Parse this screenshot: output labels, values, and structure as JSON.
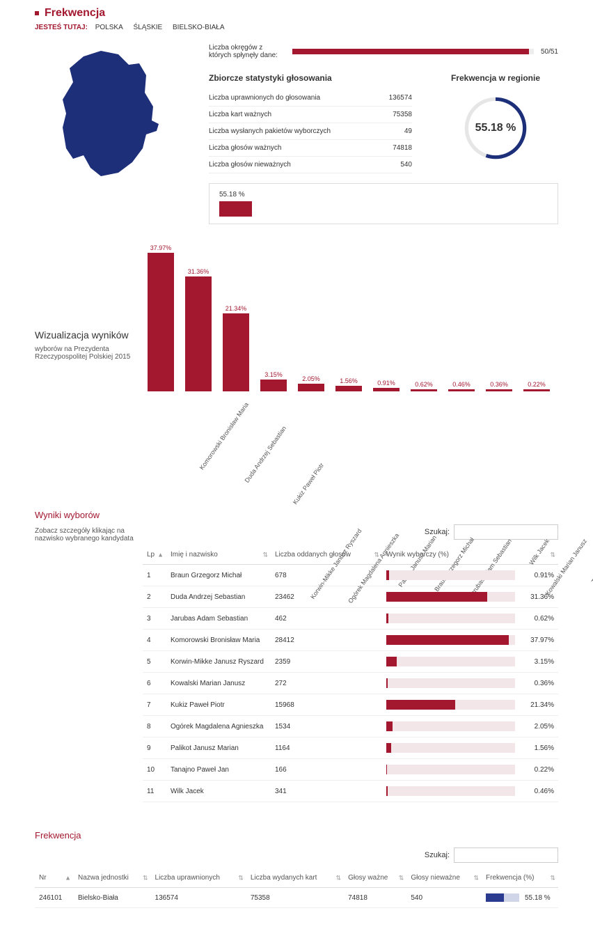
{
  "colors": {
    "accent": "#a3172f",
    "map_fill": "#1e2f7a",
    "donut_bg": "#e6e6e6",
    "pct_track": "#f3e6e9",
    "freq_track": "#d0d6e8",
    "freq_fill": "#2b3b8f",
    "text": "#333333"
  },
  "page_title": "Frekwencja",
  "breadcrumbs": {
    "you_are_here": "JESTEŚ TUTAJ:",
    "items": [
      "POLSKA",
      "ŚLĄSKIE",
      "BIELSKO-BIAŁA"
    ]
  },
  "progress": {
    "label": "Liczba okręgów z których spłynęły dane:",
    "current": 50,
    "total": 51,
    "text": "50/51",
    "pct": 98.04
  },
  "voting_stats": {
    "title": "Zbiorcze statystyki głosowania",
    "rows": [
      {
        "label": "Liczba uprawnionych do głosowania",
        "value": "136574"
      },
      {
        "label": "Liczba kart ważnych",
        "value": "75358"
      },
      {
        "label": "Liczba wysłanych pakietów wyborczych",
        "value": "49"
      },
      {
        "label": "Liczba głosów ważnych",
        "value": "74818"
      },
      {
        "label": "Liczba głosów nieważnych",
        "value": "540"
      }
    ]
  },
  "region_turnout": {
    "title": "Frekwencja w regionie",
    "pct": 55.18,
    "display": "55.18 %"
  },
  "mini_bar": {
    "label": "55.18 %",
    "width_pct": 10
  },
  "viz": {
    "heading": "Wizualizacja wyników",
    "sub": "wyborów na Prezydenta Rzeczypospolitej Polskiej 2015"
  },
  "bar_chart": {
    "type": "bar",
    "max_pct": 40,
    "bar_color": "#a3172f",
    "label_color": "#a3172f",
    "label_fontsize": 9,
    "axis_label_rotation_deg": -55,
    "bars": [
      {
        "name": "Komorowski Bronisław Maria",
        "pct": 37.97
      },
      {
        "name": "Duda Andrzej Sebastian",
        "pct": 31.36
      },
      {
        "name": "Kukiz Paweł Piotr",
        "pct": 21.34
      },
      {
        "name": "Korwin-Mikke Janusz Ryszard",
        "pct": 3.15
      },
      {
        "name": "Ogórek Magdalena Agnieszka",
        "pct": 2.05
      },
      {
        "name": "Palikot Janusz Marian",
        "pct": 1.56
      },
      {
        "name": "Braun Grzegorz Michał",
        "pct": 0.91
      },
      {
        "name": "Jarubas Adam Sebastian",
        "pct": 0.62
      },
      {
        "name": "Wilk Jacek",
        "pct": 0.46
      },
      {
        "name": "Kowalski Marian Janusz",
        "pct": 0.36
      },
      {
        "name": "Tanajno Paweł Jan",
        "pct": 0.22
      }
    ]
  },
  "results": {
    "title": "Wyniki wyborów",
    "hint": "Zobacz szczegóły klikając na nazwisko wybranego kandydata",
    "search_label": "Szukaj:",
    "columns": {
      "lp": "Lp",
      "name": "Imię i nazwisko",
      "votes": "Liczba oddanych głosów",
      "pct": "Wynik wyborczy (%)"
    },
    "rows": [
      {
        "lp": "1",
        "name": "Braun Grzegorz Michał",
        "votes": "678",
        "pct": 0.91
      },
      {
        "lp": "2",
        "name": "Duda Andrzej Sebastian",
        "votes": "23462",
        "pct": 31.36
      },
      {
        "lp": "3",
        "name": "Jarubas Adam Sebastian",
        "votes": "462",
        "pct": 0.62
      },
      {
        "lp": "4",
        "name": "Komorowski Bronisław Maria",
        "votes": "28412",
        "pct": 37.97
      },
      {
        "lp": "5",
        "name": "Korwin-Mikke Janusz Ryszard",
        "votes": "2359",
        "pct": 3.15
      },
      {
        "lp": "6",
        "name": "Kowalski Marian Janusz",
        "votes": "272",
        "pct": 0.36
      },
      {
        "lp": "7",
        "name": "Kukiz Paweł Piotr",
        "votes": "15968",
        "pct": 21.34
      },
      {
        "lp": "8",
        "name": "Ogórek Magdalena Agnieszka",
        "votes": "1534",
        "pct": 2.05
      },
      {
        "lp": "9",
        "name": "Palikot Janusz Marian",
        "votes": "1164",
        "pct": 1.56
      },
      {
        "lp": "10",
        "name": "Tanajno Paweł Jan",
        "votes": "166",
        "pct": 0.22
      },
      {
        "lp": "11",
        "name": "Wilk Jacek",
        "votes": "341",
        "pct": 0.46
      }
    ]
  },
  "freq_section": {
    "title": "Frekwencja",
    "search_label": "Szukaj:",
    "columns": {
      "nr": "Nr",
      "unit": "Nazwa jednostki",
      "eligible": "Liczba uprawnionych",
      "cards": "Liczba wydanych kart",
      "valid": "Głosy ważne",
      "invalid": "Głosy nieważne",
      "freq": "Frekwencja (%)"
    },
    "rows": [
      {
        "nr": "246101",
        "unit": "Bielsko-Biała",
        "eligible": "136574",
        "cards": "75358",
        "valid": "74818",
        "invalid": "540",
        "freq": 55.18,
        "freq_display": "55.18 %"
      }
    ]
  }
}
